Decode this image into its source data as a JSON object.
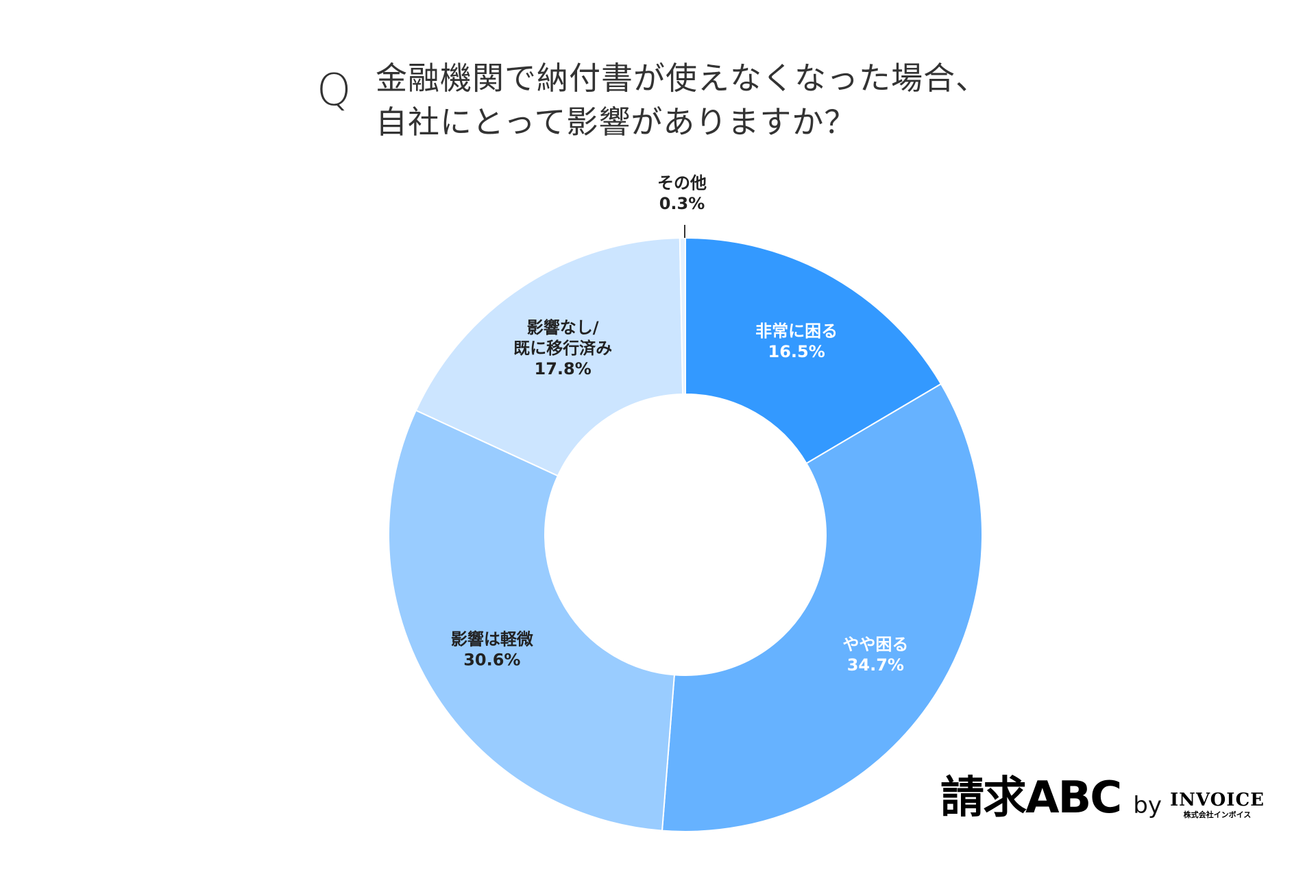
{
  "question_mark": "Q",
  "title_lines": [
    "金融機関で納付書が使えなくなった場合、",
    "自社にとって影響がありますか？"
  ],
  "chart_data": {
    "type": "pie",
    "donut": true,
    "start_angle_deg": 0,
    "direction": "clockwise",
    "slices": [
      {
        "label": "非常に困る",
        "value": 16.5,
        "value_label": "16.5%",
        "color": "#3399ff",
        "label_color": "#ffffff"
      },
      {
        "label": "やや困る",
        "value": 34.7,
        "value_label": "34.7%",
        "color": "#66b2ff",
        "label_color": "#ffffff"
      },
      {
        "label": "影響は軽微",
        "value": 30.6,
        "value_label": "30.6%",
        "color": "#99ccff",
        "label_color": "#222222"
      },
      {
        "label": "影響なし/\n既に移行済み",
        "value": 17.8,
        "value_label": "17.8%",
        "color": "#cce5ff",
        "label_color": "#222222"
      },
      {
        "label": "その他",
        "value": 0.3,
        "value_label": "0.3%",
        "color": "#e6f2ff",
        "label_color": "#222222",
        "outside": true
      }
    ]
  },
  "brand": {
    "main": "請求ABC",
    "by": "by",
    "company": "INVOICE",
    "company_sub": "株式会社インボイス"
  }
}
